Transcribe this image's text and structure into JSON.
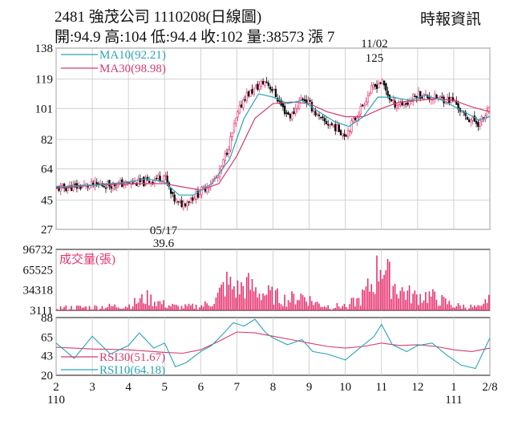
{
  "header": {
    "title": "2481  強茂公司 1110208(日線圖)",
    "quote": "開:94.9 高:104 低:94.4 收:102 量:38573 漲 7",
    "source": "時報資訊"
  },
  "colors": {
    "ma10": "#2aa3b8",
    "ma30": "#d43c6e",
    "volume": "#e8336f",
    "rsi30": "#d43c6e",
    "rsi10": "#2aa3b8",
    "up": "#e8336f",
    "down": "#111111",
    "grid": "#c8c8c8"
  },
  "chart_data": [
    {
      "type": "candlestick",
      "title": "2481 強茂公司 1110208(日線圖)",
      "y_ticks": [
        138,
        119,
        101,
        82,
        64,
        45,
        27
      ],
      "ylim": [
        27,
        138
      ],
      "grid": true,
      "legend": [
        {
          "name": "MA10(92.21)",
          "series": "ma10"
        },
        {
          "name": "MA30(98.98)",
          "series": "ma30"
        }
      ],
      "annotations": [
        {
          "date": "11/02",
          "price": "125"
        },
        {
          "date": "05/17",
          "price": "39.6"
        }
      ],
      "price_path": [
        [
          2,
          52
        ],
        [
          3,
          54
        ],
        [
          4,
          55
        ],
        [
          4.5,
          56
        ],
        [
          5,
          60
        ],
        [
          5.2,
          47
        ],
        [
          5.4,
          42
        ],
        [
          5.6,
          44
        ],
        [
          6,
          50
        ],
        [
          6.5,
          60
        ],
        [
          6.8,
          80
        ],
        [
          7,
          96
        ],
        [
          7.2,
          108
        ],
        [
          7.5,
          113
        ],
        [
          7.8,
          118
        ],
        [
          8,
          112
        ],
        [
          8.3,
          100
        ],
        [
          8.5,
          96
        ],
        [
          8.8,
          108
        ],
        [
          9,
          104
        ],
        [
          9.3,
          94
        ],
        [
          9.7,
          90
        ],
        [
          10,
          85
        ],
        [
          10.3,
          96
        ],
        [
          10.7,
          112
        ],
        [
          11,
          118
        ],
        [
          11.3,
          104
        ],
        [
          11.7,
          104
        ],
        [
          12,
          110
        ],
        [
          12.3,
          108
        ],
        [
          12.7,
          107
        ],
        [
          13,
          106
        ],
        [
          13.3,
          96
        ],
        [
          13.7,
          92
        ],
        [
          14,
          100
        ]
      ],
      "ma10_path": [
        [
          2,
          53
        ],
        [
          3,
          54
        ],
        [
          4,
          56
        ],
        [
          4.5,
          58
        ],
        [
          5,
          56
        ],
        [
          5.4,
          48
        ],
        [
          5.8,
          48
        ],
        [
          6.3,
          55
        ],
        [
          6.8,
          70
        ],
        [
          7.2,
          95
        ],
        [
          7.6,
          110
        ],
        [
          8,
          108
        ],
        [
          8.4,
          104
        ],
        [
          8.8,
          106
        ],
        [
          9.2,
          100
        ],
        [
          9.7,
          93
        ],
        [
          10.1,
          90
        ],
        [
          10.5,
          96
        ],
        [
          10.9,
          108
        ],
        [
          11.3,
          108
        ],
        [
          11.8,
          106
        ],
        [
          12.2,
          109
        ],
        [
          12.7,
          106
        ],
        [
          13.2,
          100
        ],
        [
          13.7,
          94
        ],
        [
          14,
          96
        ]
      ],
      "ma30_path": [
        [
          2,
          52
        ],
        [
          3,
          54
        ],
        [
          4,
          55
        ],
        [
          5,
          55
        ],
        [
          5.5,
          53
        ],
        [
          6,
          51
        ],
        [
          6.5,
          55
        ],
        [
          7,
          72
        ],
        [
          7.5,
          95
        ],
        [
          8,
          104
        ],
        [
          8.5,
          105
        ],
        [
          9,
          104
        ],
        [
          9.5,
          99
        ],
        [
          10,
          96
        ],
        [
          10.5,
          96
        ],
        [
          11,
          101
        ],
        [
          11.5,
          105
        ],
        [
          12,
          106
        ],
        [
          12.5,
          107
        ],
        [
          13,
          106
        ],
        [
          13.5,
          102
        ],
        [
          14,
          99
        ]
      ]
    },
    {
      "type": "bar",
      "title": "成交量(張)",
      "y_ticks": [
        96732,
        65525,
        34318,
        3111
      ],
      "ylim": [
        3111,
        96732
      ],
      "volume_profile": [
        [
          2,
          8000
        ],
        [
          3,
          9000
        ],
        [
          4,
          12000
        ],
        [
          4.5,
          26000
        ],
        [
          5,
          14000
        ],
        [
          5.4,
          9000
        ],
        [
          6,
          11000
        ],
        [
          6.4,
          20000
        ],
        [
          6.7,
          52000
        ],
        [
          7,
          40000
        ],
        [
          7.3,
          48000
        ],
        [
          7.6,
          36000
        ],
        [
          8,
          30000
        ],
        [
          8.4,
          22000
        ],
        [
          8.8,
          30000
        ],
        [
          9.2,
          16000
        ],
        [
          9.6,
          10000
        ],
        [
          10,
          12000
        ],
        [
          10.4,
          22000
        ],
        [
          10.8,
          55000
        ],
        [
          11,
          96000
        ],
        [
          11.2,
          60000
        ],
        [
          11.5,
          40000
        ],
        [
          11.9,
          28000
        ],
        [
          12.3,
          30000
        ],
        [
          12.7,
          20000
        ],
        [
          13,
          12000
        ],
        [
          13.4,
          10000
        ],
        [
          13.8,
          8000
        ],
        [
          14,
          34000
        ]
      ]
    },
    {
      "type": "line",
      "y_ticks": [
        88,
        65,
        43,
        20
      ],
      "ylim": [
        20,
        88
      ],
      "legend": [
        {
          "name": "RSI30(51.67)",
          "series": "rsi30"
        },
        {
          "name": "RSI10(64.18)",
          "series": "rsi10"
        }
      ],
      "rsi30_path": [
        [
          2,
          53
        ],
        [
          3,
          51
        ],
        [
          4,
          50
        ],
        [
          5,
          47
        ],
        [
          5.5,
          46
        ],
        [
          6,
          50
        ],
        [
          6.5,
          60
        ],
        [
          7,
          71
        ],
        [
          7.5,
          70
        ],
        [
          8,
          66
        ],
        [
          8.5,
          62
        ],
        [
          9,
          58
        ],
        [
          9.5,
          54
        ],
        [
          10,
          52
        ],
        [
          10.5,
          54
        ],
        [
          11,
          58
        ],
        [
          11.5,
          55
        ],
        [
          12,
          56
        ],
        [
          12.5,
          54
        ],
        [
          13,
          50
        ],
        [
          13.5,
          48
        ],
        [
          14,
          52
        ]
      ],
      "rsi10_path": [
        [
          2,
          58
        ],
        [
          2.5,
          40
        ],
        [
          3,
          66
        ],
        [
          3.5,
          45
        ],
        [
          4,
          55
        ],
        [
          4.3,
          70
        ],
        [
          4.7,
          52
        ],
        [
          5,
          58
        ],
        [
          5.3,
          30
        ],
        [
          5.6,
          35
        ],
        [
          6,
          48
        ],
        [
          6.3,
          55
        ],
        [
          6.6,
          68
        ],
        [
          6.9,
          82
        ],
        [
          7.2,
          78
        ],
        [
          7.5,
          86
        ],
        [
          7.8,
          70
        ],
        [
          8,
          64
        ],
        [
          8.4,
          56
        ],
        [
          8.8,
          62
        ],
        [
          9.1,
          48
        ],
        [
          9.5,
          45
        ],
        [
          10,
          38
        ],
        [
          10.4,
          52
        ],
        [
          10.8,
          66
        ],
        [
          11,
          80
        ],
        [
          11.3,
          56
        ],
        [
          11.7,
          48
        ],
        [
          12,
          55
        ],
        [
          12.4,
          58
        ],
        [
          12.8,
          44
        ],
        [
          13.2,
          32
        ],
        [
          13.6,
          28
        ],
        [
          14,
          64
        ]
      ]
    }
  ],
  "x_axis": {
    "labels": [
      {
        "m": 2,
        "text": "2"
      },
      {
        "m": 3,
        "text": "3"
      },
      {
        "m": 4,
        "text": "4"
      },
      {
        "m": 5,
        "text": "5"
      },
      {
        "m": 6,
        "text": "6"
      },
      {
        "m": 7,
        "text": "7"
      },
      {
        "m": 8,
        "text": "8"
      },
      {
        "m": 9,
        "text": "9"
      },
      {
        "m": 10,
        "text": "10"
      },
      {
        "m": 11,
        "text": "11"
      },
      {
        "m": 12,
        "text": "12"
      },
      {
        "m": 13,
        "text": "1"
      },
      {
        "m": 14,
        "text": "2/8"
      }
    ],
    "year_labels": [
      {
        "m": 2,
        "text": "110"
      },
      {
        "m": 13,
        "text": "111"
      }
    ]
  }
}
